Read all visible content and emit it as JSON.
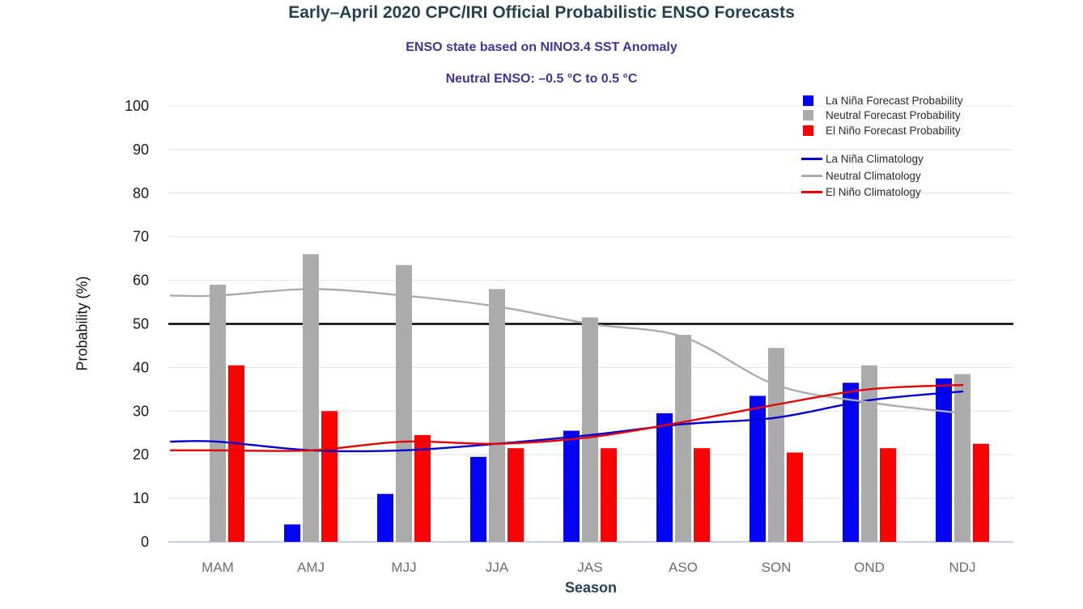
{
  "header": {
    "title": "Early–April 2020 CPC/IRI Official Probabilistic ENSO Forecasts",
    "subtitle_line1": "ENSO state based on NINO3.4 SST Anomaly",
    "subtitle_line2": "Neutral ENSO: –0.5 °C to 0.5 °C"
  },
  "chart_data": {
    "type": "bar",
    "title": "Early–April 2020 CPC/IRI Official Probabilistic ENSO Forecasts",
    "subtitle": "ENSO state based on NINO3.4 SST Anomaly — Neutral ENSO: –0.5 °C to 0.5 °C",
    "xlabel": "Season",
    "ylabel": "Probability (%)",
    "ylim": [
      0,
      100
    ],
    "yticks": [
      0,
      10,
      20,
      30,
      40,
      50,
      60,
      70,
      80,
      90,
      100
    ],
    "grid": true,
    "reference_line": {
      "value": 50,
      "color": "#000000"
    },
    "legend_position": "top-right",
    "categories": [
      "MAM",
      "AMJ",
      "MJJ",
      "JJA",
      "JAS",
      "ASO",
      "SON",
      "OND",
      "NDJ"
    ],
    "bar_series": [
      {
        "name": "La Niña Forecast Probability",
        "color": "#0404F4",
        "values": [
          0,
          4,
          11,
          19.5,
          25.5,
          29.5,
          33.5,
          36.5,
          37.5
        ]
      },
      {
        "name": "Neutral Forecast Probability",
        "color": "#ABABAB",
        "values": [
          59,
          66,
          63.5,
          58,
          51.5,
          47.5,
          44.5,
          40.5,
          38.5
        ]
      },
      {
        "name": "El Niño Forecast Probability",
        "color": "#F80404",
        "values": [
          40.5,
          30,
          24.5,
          21.5,
          21.5,
          21.5,
          20.5,
          21.5,
          22.5
        ]
      }
    ],
    "line_series": [
      {
        "name": "La Niña Climatology",
        "color": "#0000D2",
        "values": [
          23,
          21,
          21,
          22.5,
          24.5,
          27,
          28.5,
          32.5,
          34.5
        ]
      },
      {
        "name": "Neutral Climatology",
        "color": "#ACACAC",
        "values": [
          56.5,
          58,
          56.5,
          54,
          50,
          47,
          36,
          32,
          29.5
        ]
      },
      {
        "name": "El Niño Climatology",
        "color": "#E60000",
        "values": [
          21,
          21,
          23,
          22.5,
          24,
          27.5,
          31.5,
          35,
          36
        ]
      }
    ],
    "colors": {
      "title": "#26414F",
      "subtitle": "#3E3799",
      "gridline": "#E4E4E6",
      "zero_line": "#BFC9E4",
      "y_tick_label": "#1A1A1A",
      "x_tick_label": "#6B6E71"
    }
  }
}
